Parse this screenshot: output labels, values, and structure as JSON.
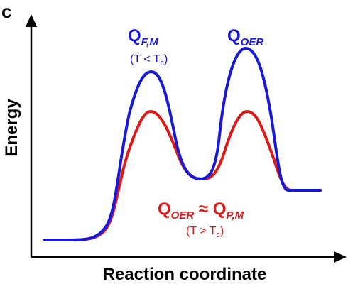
{
  "panel_label": "c",
  "axes": {
    "y_label": "Energy",
    "x_label": "Reaction coordinate"
  },
  "colors": {
    "blue": "#1818d8",
    "red": "#e01818",
    "axis": "#000000"
  },
  "annotations": {
    "blue_left": {
      "main": "Q",
      "sub": "F,M",
      "condition_prefix": "(T < T",
      "condition_sub": "c",
      "condition_suffix": ")"
    },
    "blue_right": {
      "main": "Q",
      "sub": "OER"
    },
    "red_label": {
      "main1": "Q",
      "sub1": "OER",
      "approx": " ≈ ",
      "main2": "Q",
      "sub2": "P,M",
      "condition_prefix": "(T > T",
      "condition_sub": "c",
      "condition_suffix": ")"
    }
  }
}
